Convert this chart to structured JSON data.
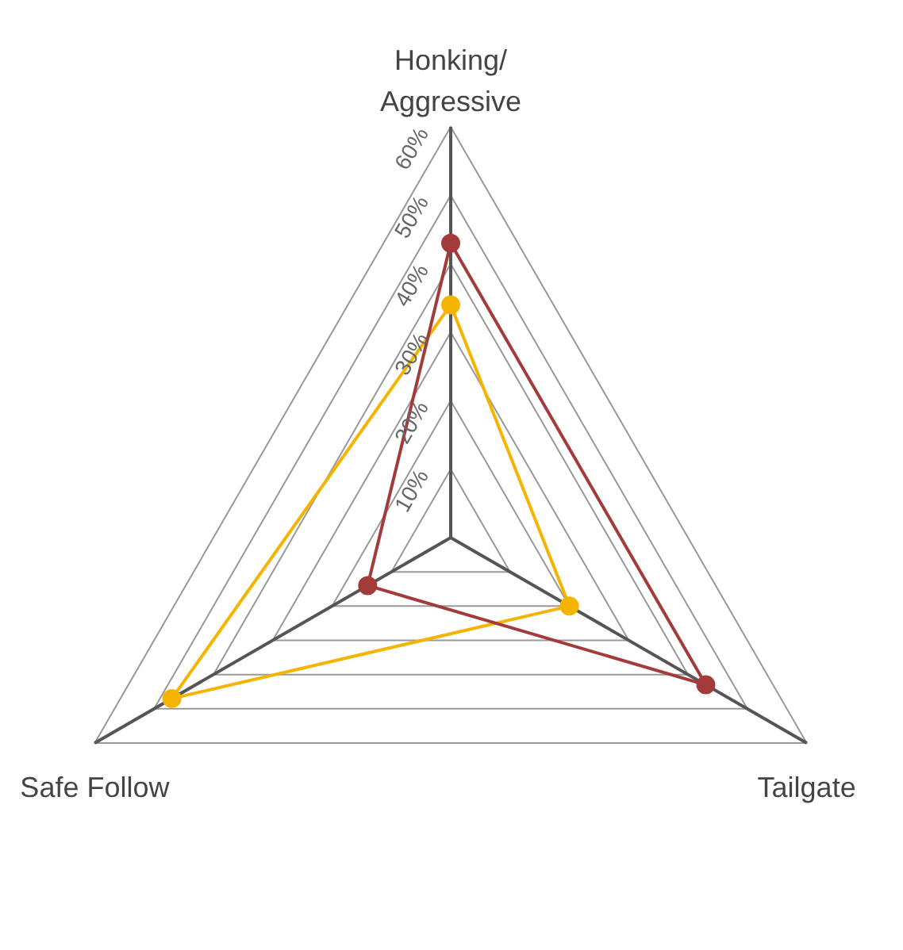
{
  "chart_data": {
    "type": "radar",
    "categories": [
      "Honking/\nAggressive",
      "Tailgate",
      "Safe Follow"
    ],
    "series": [
      {
        "color": "#a33b3b",
        "values": [
          43,
          43,
          14
        ]
      },
      {
        "color": "#f5b400",
        "values": [
          34,
          20,
          47
        ]
      }
    ],
    "ylim": [
      0,
      60
    ],
    "yticks": [
      {
        "value": 10,
        "label": "10%"
      },
      {
        "value": 20,
        "label": "20%"
      },
      {
        "value": 30,
        "label": "30%"
      },
      {
        "value": 40,
        "label": "40%"
      },
      {
        "value": 50,
        "label": "50%"
      },
      {
        "value": 60,
        "label": "60%"
      }
    ],
    "grid": true,
    "legend": false,
    "marker": "circle",
    "line_style": "solid"
  }
}
